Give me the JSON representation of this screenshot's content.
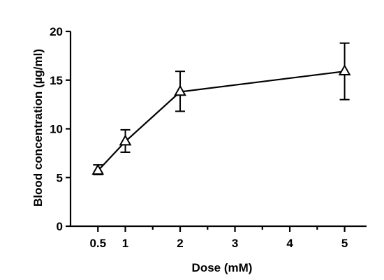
{
  "chart_data": {
    "type": "line",
    "xlabel": "Dose (mM)",
    "ylabel": "Blood concentration (µg/ml)",
    "xlim": [
      0,
      5.4
    ],
    "ylim": [
      0,
      20
    ],
    "xticks": [
      0.5,
      1,
      2,
      3,
      4,
      5
    ],
    "xtick_labels": [
      "0.5",
      "1",
      "2",
      "3",
      "4",
      "5"
    ],
    "yticks": [
      0,
      5,
      10,
      15,
      20
    ],
    "ytick_labels": [
      "0",
      "5",
      "10",
      "15",
      "20"
    ],
    "grid": false,
    "series": [
      {
        "marker": "open-triangle",
        "x": [
          0.5,
          1,
          2,
          5
        ],
        "y": [
          5.7,
          8.7,
          13.8,
          15.9
        ],
        "error_low": [
          5.3,
          7.6,
          11.8,
          13.0
        ],
        "error_high": [
          6.3,
          9.9,
          15.9,
          18.8
        ]
      }
    ]
  }
}
